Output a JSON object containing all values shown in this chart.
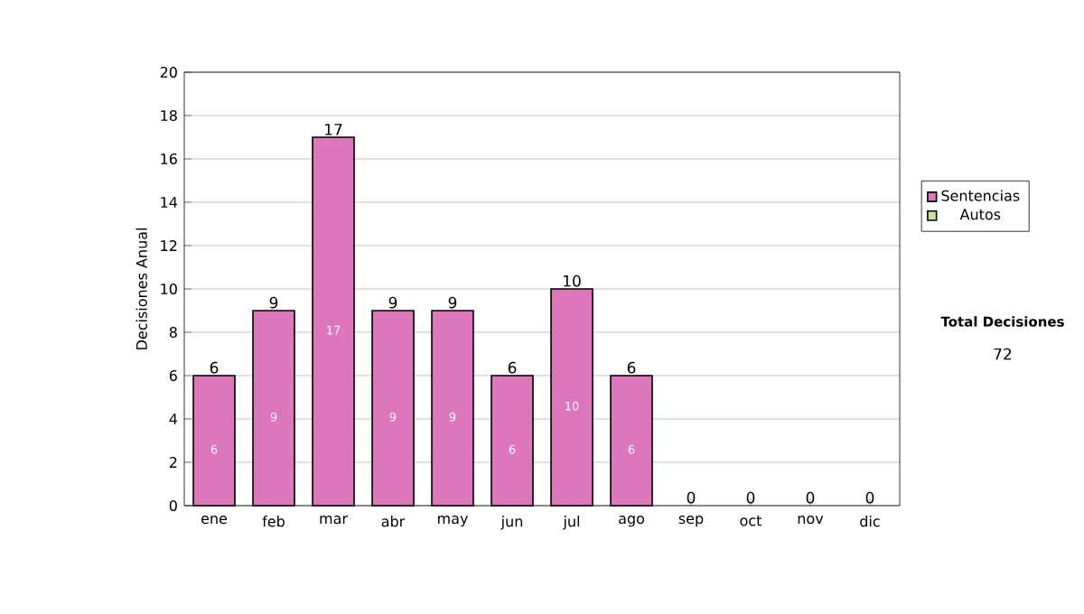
{
  "chart_data": {
    "type": "bar",
    "stacked": true,
    "ylabel": "Decisiones Anual",
    "categories": [
      "ene",
      "feb",
      "mar",
      "abr",
      "may",
      "jun",
      "jul",
      "ago",
      "sep",
      "oct",
      "nov",
      "dic"
    ],
    "series": [
      {
        "name": "Sentencias",
        "color": "#dd77bb",
        "values": [
          6,
          9,
          17,
          9,
          9,
          6,
          10,
          6,
          0,
          0,
          0,
          0
        ],
        "value_labels": [
          "6",
          "9",
          "17",
          "9",
          "9",
          "6",
          "10",
          "6",
          null,
          null,
          null,
          null
        ]
      },
      {
        "name": "Autos",
        "color": "#cce699",
        "values": [
          0,
          0,
          0,
          0,
          0,
          0,
          0,
          0,
          0,
          0,
          0,
          0
        ]
      }
    ],
    "totals": [
      "6",
      "9",
      "17",
      "9",
      "9",
      "6",
      "10",
      "6",
      "0",
      "0",
      "0",
      "0"
    ],
    "ylim": [
      0,
      20
    ],
    "yticks": [
      0,
      2,
      4,
      6,
      8,
      10,
      12,
      14,
      16,
      18,
      20
    ],
    "grid": "y",
    "legend": "right",
    "annotations": [
      "Total Decisiones",
      "72"
    ]
  }
}
